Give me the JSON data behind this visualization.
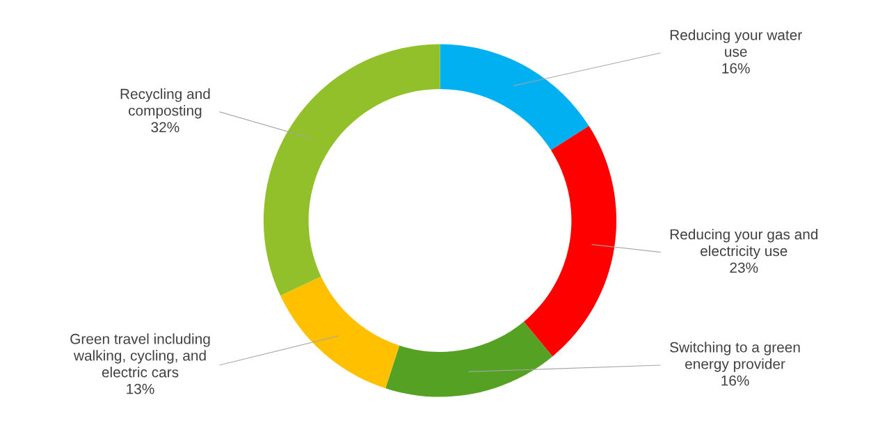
{
  "chart_data": {
    "type": "donut",
    "categories": [
      "Reducing your water\nuse",
      "Reducing your gas and\nelectricity use",
      "Switching to a green\nenergy provider",
      "Green travel including\nwalking, cycling, and\nelectric cars",
      "Recycling and\ncomposting"
    ],
    "values": [
      16,
      23,
      16,
      13,
      32
    ],
    "value_labels": [
      "16%",
      "23%",
      "16%",
      "13%",
      "32%"
    ],
    "colors": [
      "#00b0f0",
      "#ff0000",
      "#55a124",
      "#ffc000",
      "#92c02a"
    ],
    "legend": false
  }
}
